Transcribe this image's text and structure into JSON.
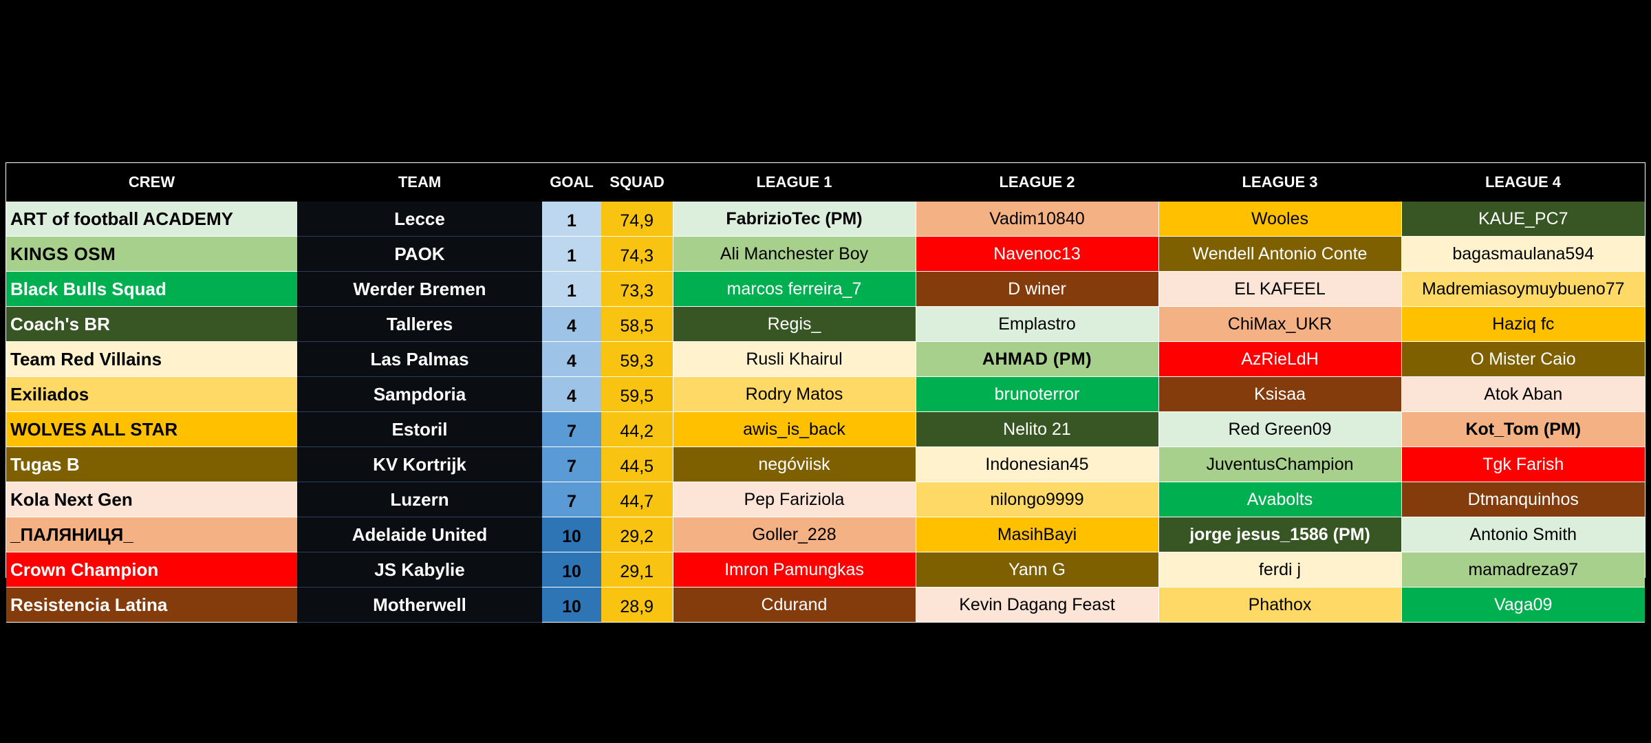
{
  "headers": [
    "CREW",
    "TEAM",
    "GOAL",
    "SQUAD",
    "LEAGUE 1",
    "LEAGUE 2",
    "LEAGUE 3",
    "LEAGUE 4"
  ],
  "palette": {
    "mint": "#dcefdc",
    "sage": "#a7d08c",
    "green": "#00b050",
    "forest": "#375623",
    "cream": "#fff2cc",
    "gold": "#ffd966",
    "amber": "#ffc000",
    "olive": "#7f6000",
    "peach": "#fce4d6",
    "salmon": "#f4b183",
    "red": "#ff0000",
    "brown": "#843c0c"
  },
  "goal_colors": {
    "1": "#bdd7ee",
    "4": "#9dc3e6",
    "7": "#5b9bd5",
    "10": "#2e75b6"
  },
  "rows": [
    {
      "crew": "ART of football ACADEMY",
      "crew_color": "mint",
      "team": "Lecce",
      "goal": "1",
      "squad": "74,9",
      "leagues": [
        {
          "name": "FabrizioTec (PM)",
          "color": "mint",
          "pm": true
        },
        {
          "name": "Vadim10840",
          "color": "salmon"
        },
        {
          "name": "Wooles",
          "color": "amber"
        },
        {
          "name": "KAUE_PC7",
          "color": "forest"
        }
      ]
    },
    {
      "crew": "KINGS OSM",
      "crew_color": "sage",
      "crew_smallcaps": true,
      "team": "PAOK",
      "goal": "1",
      "squad": "74,3",
      "leagues": [
        {
          "name": "Ali Manchester Boy",
          "color": "sage"
        },
        {
          "name": "Navenoc13",
          "color": "red"
        },
        {
          "name": "Wendell Antonio Conte",
          "color": "olive"
        },
        {
          "name": "bagasmaulana594",
          "color": "cream"
        }
      ]
    },
    {
      "crew": "Black Bulls Squad",
      "crew_color": "green",
      "team": "Werder Bremen",
      "goal": "1",
      "squad": "73,3",
      "leagues": [
        {
          "name": "marcos ferreira_7",
          "color": "green"
        },
        {
          "name": "D winer",
          "color": "brown"
        },
        {
          "name": "EL KAFEEL",
          "color": "peach"
        },
        {
          "name": "Madremiasoymuybueno77",
          "color": "gold"
        }
      ]
    },
    {
      "crew": "Coach's BR",
      "crew_color": "forest",
      "team": "Talleres",
      "goal": "4",
      "squad": "58,5",
      "leagues": [
        {
          "name": "Regis_",
          "color": "forest"
        },
        {
          "name": "Emplastro",
          "color": "mint"
        },
        {
          "name": "ChiMax_UKR",
          "color": "salmon"
        },
        {
          "name": "Haziq fc",
          "color": "amber"
        }
      ]
    },
    {
      "crew": "Team Red Villains",
      "crew_color": "cream",
      "team": "Las Palmas",
      "goal": "4",
      "squad": "59,3",
      "leagues": [
        {
          "name": "Rusli Khairul",
          "color": "cream"
        },
        {
          "name": "AHMAD (PM)",
          "color": "sage",
          "pm": true
        },
        {
          "name": "AzRieLdH",
          "color": "red"
        },
        {
          "name": "O Mister Caio",
          "color": "olive"
        }
      ]
    },
    {
      "crew": "Exiliados",
      "crew_color": "gold",
      "team": "Sampdoria",
      "goal": "4",
      "squad": "59,5",
      "leagues": [
        {
          "name": "Rodry Matos",
          "color": "gold"
        },
        {
          "name": "brunoterror",
          "color": "green"
        },
        {
          "name": "Ksisaa",
          "color": "brown"
        },
        {
          "name": "Atok Aban",
          "color": "peach"
        }
      ]
    },
    {
      "crew": "WOLVES ALL STAR",
      "crew_color": "amber",
      "team": "Estoril",
      "goal": "7",
      "squad": "44,2",
      "leagues": [
        {
          "name": "awis_is_back",
          "color": "amber"
        },
        {
          "name": "Nelito 21",
          "color": "forest"
        },
        {
          "name": "Red Green09",
          "color": "mint"
        },
        {
          "name": "Kot_Tom (PM)",
          "color": "salmon",
          "pm": true
        }
      ]
    },
    {
      "crew": "Tugas B",
      "crew_color": "olive",
      "team": "KV Kortrijk",
      "goal": "7",
      "squad": "44,5",
      "leagues": [
        {
          "name": "negóviisk",
          "color": "olive"
        },
        {
          "name": "Indonesian45",
          "color": "cream"
        },
        {
          "name": "JuventusChampion",
          "color": "sage"
        },
        {
          "name": "Tgk Farish",
          "color": "red"
        }
      ]
    },
    {
      "crew": "Kola Next Gen",
      "crew_color": "peach",
      "team": "Luzern",
      "goal": "7",
      "squad": "44,7",
      "leagues": [
        {
          "name": "Pep Fariziola",
          "color": "peach"
        },
        {
          "name": "nilongo9999",
          "color": "gold"
        },
        {
          "name": "Avabolts",
          "color": "green"
        },
        {
          "name": "Dtmanquinhos",
          "color": "brown"
        }
      ]
    },
    {
      "crew": "_ПАЛЯНИЦЯ_",
      "crew_color": "salmon",
      "team": "Adelaide United",
      "goal": "10",
      "squad": "29,2",
      "leagues": [
        {
          "name": "Goller_228",
          "color": "salmon"
        },
        {
          "name": "MasihBayi",
          "color": "amber"
        },
        {
          "name": "jorge jesus_1586 (PM)",
          "color": "forest",
          "pm": true
        },
        {
          "name": "Antonio Smith",
          "color": "mint"
        }
      ]
    },
    {
      "crew": "Crown Champion",
      "crew_color": "red",
      "team": "JS Kabylie",
      "goal": "10",
      "squad": "29,1",
      "leagues": [
        {
          "name": "Imron Pamungkas",
          "color": "red"
        },
        {
          "name": "Yann G",
          "color": "olive"
        },
        {
          "name": "ferdi j",
          "color": "cream"
        },
        {
          "name": "mamadreza97",
          "color": "sage"
        }
      ]
    },
    {
      "crew": "Resistencia Latina",
      "crew_color": "brown",
      "team": "Motherwell",
      "goal": "10",
      "squad": "28,9",
      "leagues": [
        {
          "name": "Cdurand",
          "color": "brown"
        },
        {
          "name": "Kevin Dagang Feast",
          "color": "peach"
        },
        {
          "name": "Phathox",
          "color": "gold"
        },
        {
          "name": "Vaga09",
          "color": "green"
        }
      ]
    }
  ]
}
